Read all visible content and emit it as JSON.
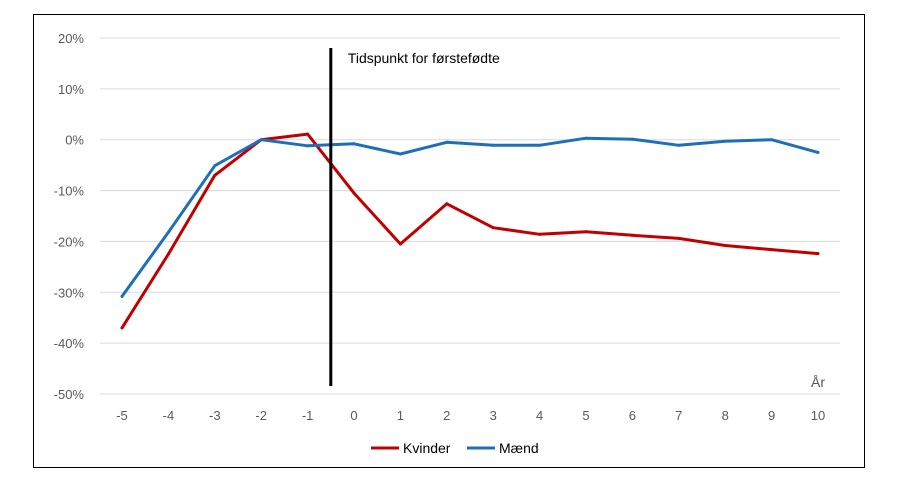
{
  "chart_data": {
    "type": "line",
    "title": "",
    "xlabel": "",
    "ylabel": "",
    "x_unit_label": "År",
    "x": [
      -5,
      -4,
      -3,
      -2,
      -1,
      0,
      1,
      2,
      3,
      4,
      5,
      6,
      7,
      8,
      9,
      10
    ],
    "x_tick_labels": [
      "-5",
      "-4",
      "-3",
      "-2",
      "-1",
      "0",
      "1",
      "2",
      "3",
      "4",
      "5",
      "6",
      "7",
      "8",
      "9",
      "10"
    ],
    "y_ticks": [
      20,
      10,
      0,
      -10,
      -20,
      -30,
      -40,
      -50
    ],
    "y_tick_labels": [
      "20%",
      "10%",
      "0%",
      "-10%",
      "-20%",
      "-30%",
      "-40%",
      "-50%"
    ],
    "ylim": [
      -50,
      20
    ],
    "grid": true,
    "legend": "bottom-center",
    "series": [
      {
        "name": "Kvinder",
        "color": "#c00000",
        "values": [
          -37,
          -22.5,
          -7,
          0,
          1.1,
          -10.5,
          -20.5,
          -12.6,
          -17.3,
          -18.6,
          -18.1,
          -18.8,
          -19.4,
          -20.8,
          -21.6,
          -22.4
        ]
      },
      {
        "name": "Mænd",
        "color": "#1f6fb8",
        "values": [
          -30.8,
          -18.2,
          -5.1,
          0,
          -1.2,
          -0.8,
          -2.8,
          -0.5,
          -1.1,
          -1.1,
          0.3,
          0.1,
          -1.1,
          -0.3,
          0,
          -2.5
        ]
      }
    ],
    "annotation": {
      "text": "Tidspunkt for førstefødte",
      "x": -0.5
    }
  }
}
